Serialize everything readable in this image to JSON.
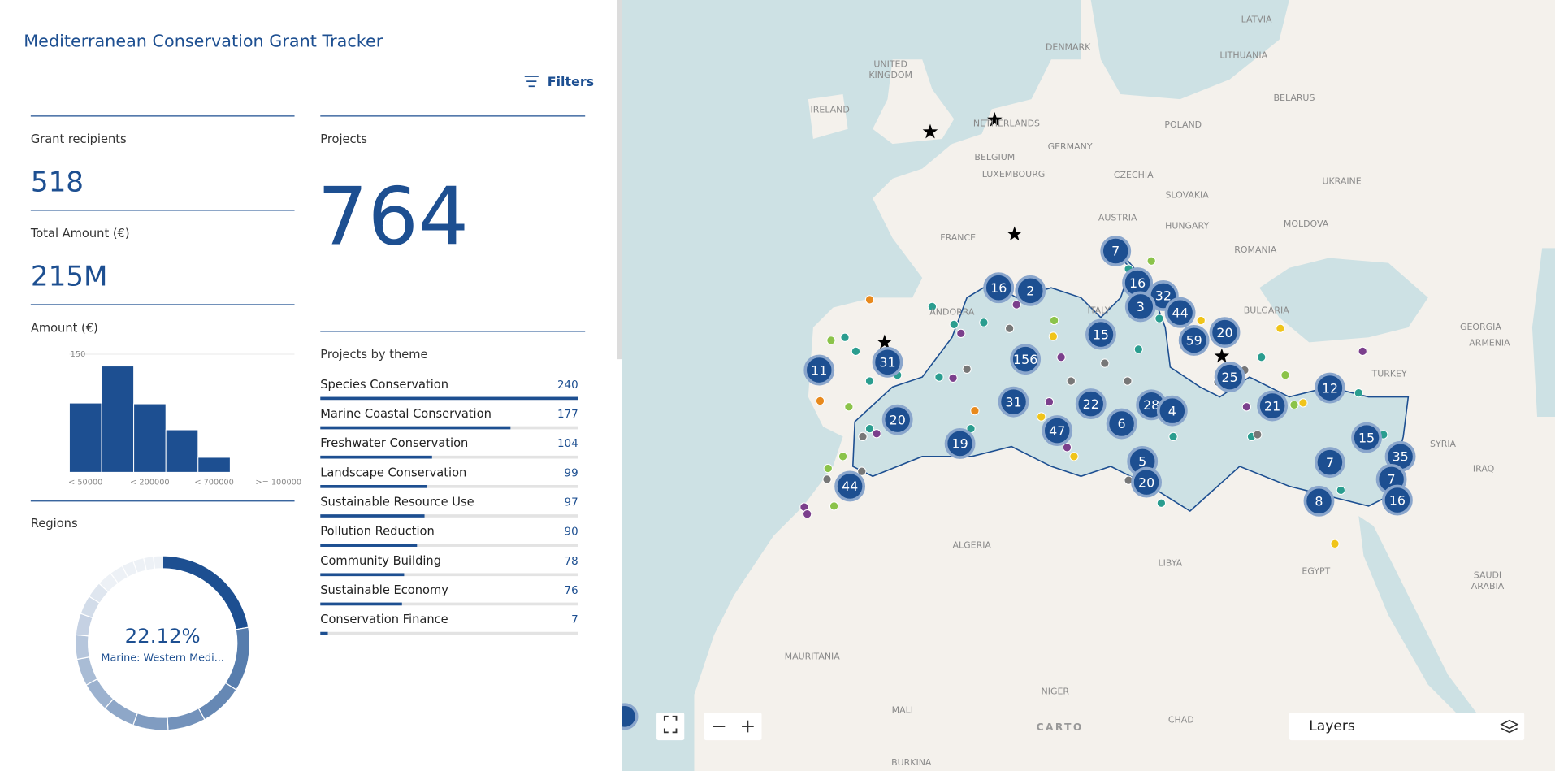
{
  "header": {
    "title": "Mediterranean Conservation Grant Tracker",
    "filters": "Filters"
  },
  "kpis": [
    {
      "label": "Grant recipients",
      "value": 518
    },
    {
      "label": "Total Amount (€)",
      "value": "215M"
    },
    {
      "label": "Projects",
      "value": 764
    }
  ],
  "chart_data": [
    {
      "type": "bar",
      "title": "Amount (€)",
      "categories": [
        "< 50000",
        null,
        "< 200000",
        null,
        "< 700000",
        null,
        ">= 100000"
      ],
      "values": [
        88,
        135,
        87,
        54,
        19,
        0,
        0
      ],
      "color": "#1d4f91",
      "ylim": [
        0,
        150
      ],
      "yticks": [
        150
      ],
      "grid": true
    },
    {
      "type": "donut",
      "title": "Regions",
      "categories": [
        "Marine: Western Medi...",
        null,
        null,
        null,
        null,
        null,
        null,
        null,
        null,
        null,
        null,
        null,
        null,
        null,
        null,
        null,
        null,
        null
      ],
      "values": [
        22.12,
        11.88,
        8,
        7,
        6.5,
        6,
        5.5,
        5,
        4.5,
        4,
        3.5,
        3,
        2.8,
        2.5,
        2.2,
        2,
        1.8,
        1.7
      ],
      "value_labels": [
        "22.12%",
        null,
        null,
        null,
        null,
        null,
        null,
        null,
        null,
        null,
        null,
        null,
        null,
        null,
        null,
        null,
        null,
        null
      ],
      "color": "#1d4f91"
    },
    {
      "type": "hbar",
      "title": "Projects by theme",
      "categories": [
        "Species Conservation",
        "Marine Coastal Conservation",
        "Freshwater Conservation",
        "Landscape Conservation",
        "Sustainable Resource Use",
        "Pollution Reduction",
        "Community Building",
        "Sustainable Economy",
        "Conservation Finance"
      ],
      "values": [
        240,
        177,
        104,
        99,
        97,
        90,
        78,
        76,
        7
      ],
      "color": "#1d4f91",
      "xlim": [
        0,
        240
      ]
    }
  ],
  "map": {
    "labels": [
      "LATVIA",
      "DENMARK",
      "LITHUANIA",
      "UNITED",
      "KINGDOM",
      "IRELAND",
      "BELARUS",
      "NETHERLANDS",
      "POLAND",
      "GERMANY",
      "BELGIUM",
      "LUXEMBOURG",
      "CZECHIA",
      "UKRAINE",
      "SLOVAKIA",
      "FRANCE",
      "AUSTRIA",
      "HUNGARY",
      "MOLDOVA",
      "ROMANIA",
      "BULGARIA",
      "ANDORRA",
      "ITALY",
      "TURKEY",
      "GEORGIA",
      "ARMENIA",
      "SYRIA",
      "IRAQ",
      "ALGERIA",
      "LIBYA",
      "EGYPT",
      "SAUDI",
      "ARABIA",
      "MAURITANIA",
      "NIGER",
      "MALI",
      "CHAD",
      "BURKINA"
    ],
    "clusters": [
      7,
      16,
      2,
      16,
      32,
      3,
      44,
      20,
      15,
      59,
      156,
      31,
      11,
      25,
      12,
      22,
      28,
      4,
      21,
      31,
      20,
      6,
      47,
      15,
      19,
      35,
      5,
      7,
      20,
      7,
      44,
      8,
      16
    ],
    "layers": "Layers",
    "attribution": "CARTO"
  }
}
